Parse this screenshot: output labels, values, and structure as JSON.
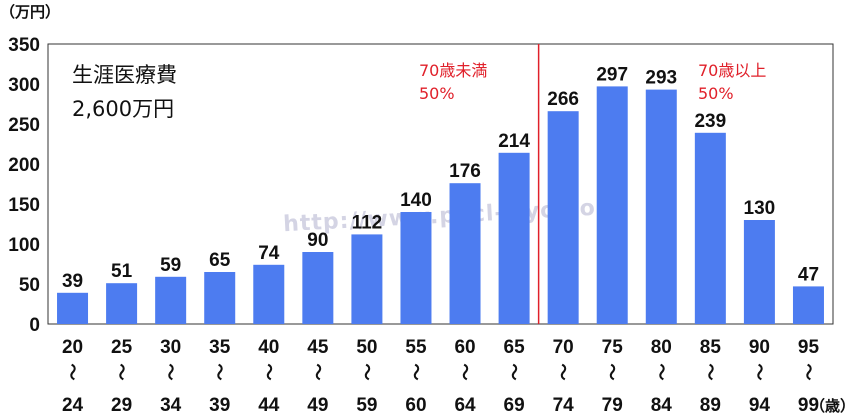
{
  "chart_data": {
    "type": "bar",
    "title": "生涯医療費",
    "subtitle": "2,600万円",
    "y_unit": "（万円）",
    "x_unit": "（歳）",
    "ylim": [
      0,
      350
    ],
    "yticks": [
      0,
      50,
      100,
      150,
      200,
      250,
      300,
      350
    ],
    "categories": [
      {
        "from": "20",
        "to": "24"
      },
      {
        "from": "25",
        "to": "29"
      },
      {
        "from": "30",
        "to": "34"
      },
      {
        "from": "35",
        "to": "39"
      },
      {
        "from": "40",
        "to": "44"
      },
      {
        "from": "45",
        "to": "49"
      },
      {
        "from": "50",
        "to": "59"
      },
      {
        "from": "55",
        "to": "60"
      },
      {
        "from": "60",
        "to": "64"
      },
      {
        "from": "65",
        "to": "69"
      },
      {
        "from": "70",
        "to": "74"
      },
      {
        "from": "75",
        "to": "79"
      },
      {
        "from": "80",
        "to": "84"
      },
      {
        "from": "85",
        "to": "89"
      },
      {
        "from": "90",
        "to": "94"
      },
      {
        "from": "95",
        "to": "99"
      }
    ],
    "range_separator": "〜",
    "values": [
      39,
      51,
      59,
      65,
      74,
      90,
      112,
      140,
      176,
      214,
      266,
      297,
      293,
      239,
      130,
      47
    ],
    "bar_color": "#4d7cf0",
    "divider_color": "#e0202a",
    "divider_after_index": 9,
    "annotations": {
      "left": {
        "line1": "70歳未満",
        "line2": "50%"
      },
      "right": {
        "line1": "70歳以上",
        "line2": "50%"
      }
    },
    "watermark": "http://www.pacl-iryo.com/",
    "grid": false
  }
}
